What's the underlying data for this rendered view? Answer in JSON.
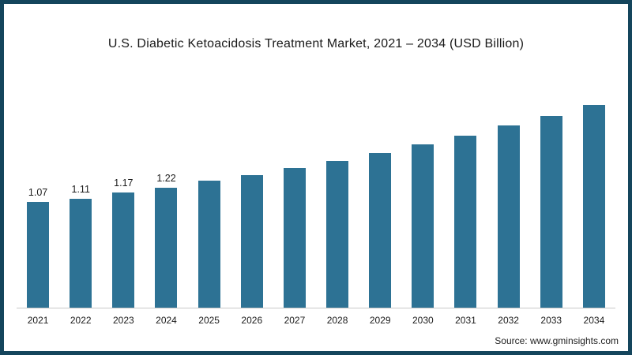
{
  "frame": {
    "border_color": "#14455c",
    "background_color": "#ffffff"
  },
  "chart_data": {
    "type": "bar",
    "title": "U.S. Diabetic Ketoacidosis Treatment Market, 2021 – 2034 (USD Billion)",
    "categories": [
      "2021",
      "2022",
      "2023",
      "2024",
      "2025",
      "2026",
      "2027",
      "2028",
      "2029",
      "2030",
      "2031",
      "2032",
      "2033",
      "2034"
    ],
    "values": [
      1.07,
      1.11,
      1.17,
      1.22,
      1.29,
      1.35,
      1.42,
      1.49,
      1.57,
      1.66,
      1.75,
      1.85,
      1.95,
      2.06
    ],
    "data_labels": [
      "1.07",
      "1.11",
      "1.17",
      "1.22",
      "",
      "",
      "",
      "",
      "",
      "",
      "",
      "",
      "",
      ""
    ],
    "xlabel": "",
    "ylabel": "",
    "ylim": [
      0,
      2.3
    ],
    "grid": false,
    "legend_position": "none",
    "bar_color": "#2d7294",
    "axis_line_color": "#c9c9c9"
  },
  "source": {
    "text": "Source: www.gminsights.com"
  }
}
